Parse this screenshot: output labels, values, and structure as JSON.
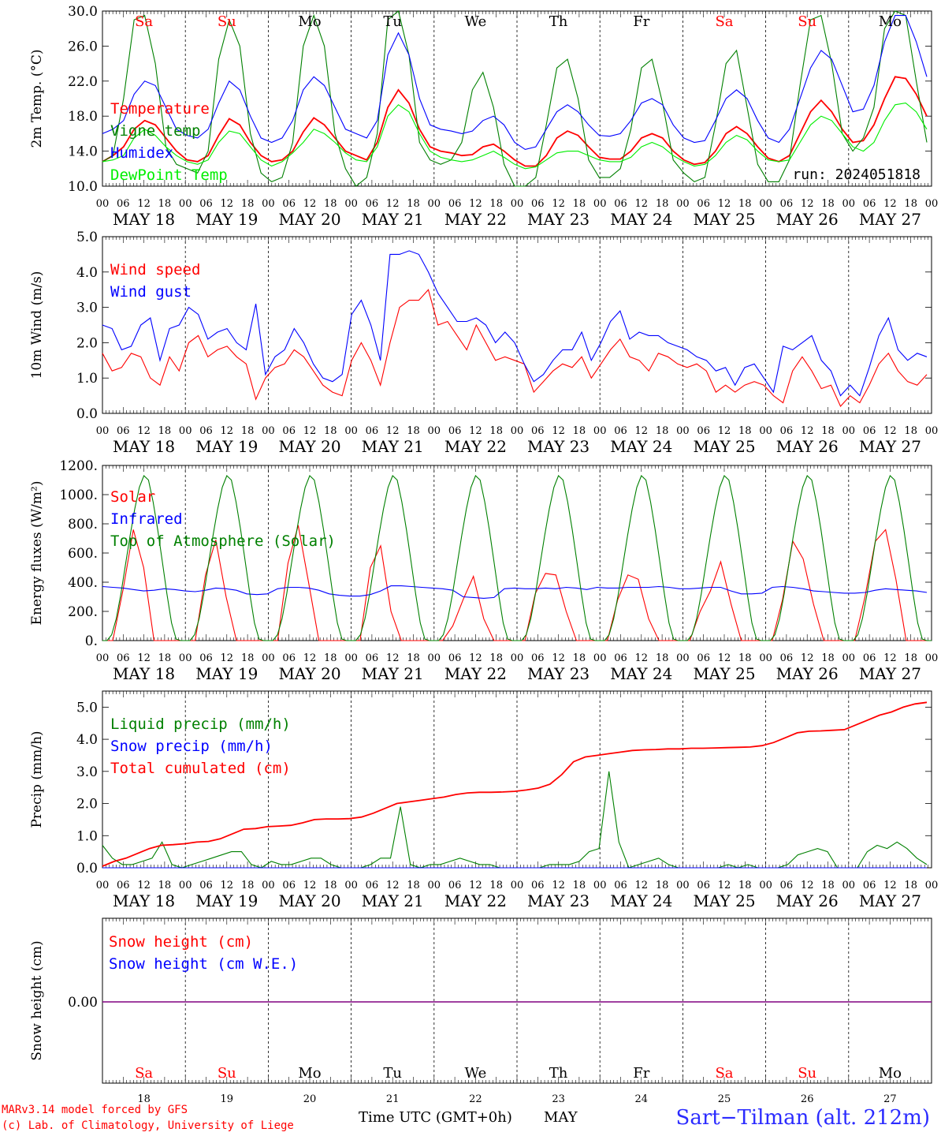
{
  "run_label": "run: 2024051818",
  "footer": {
    "credit_line1": "MARv3.14 model forced by GFS",
    "credit_line2": "(c) Lab. of Climatology, University of Liege",
    "xaxis_title": "Time UTC (GMT+0h)",
    "month_label": "MAY",
    "station": "Sart−Tilman (alt. 212m)"
  },
  "hour_labels": [
    "00",
    "06",
    "12",
    "18"
  ],
  "final_hour_label": "00",
  "day_labels": [
    "MAY 18",
    "MAY 19",
    "MAY 20",
    "MAY 21",
    "MAY 22",
    "MAY 23",
    "MAY 24",
    "MAY 25",
    "MAY 26",
    "MAY 27"
  ],
  "day_numbers": [
    "18",
    "19",
    "20",
    "21",
    "22",
    "23",
    "24",
    "25",
    "26",
    "27"
  ],
  "weekdays": [
    {
      "name": "Sa",
      "weekend": true
    },
    {
      "name": "Su",
      "weekend": true
    },
    {
      "name": "Mo",
      "weekend": false
    },
    {
      "name": "Tu",
      "weekend": false
    },
    {
      "name": "We",
      "weekend": false
    },
    {
      "name": "Th",
      "weekend": false
    },
    {
      "name": "Fr",
      "weekend": false
    },
    {
      "name": "Sa",
      "weekend": true
    },
    {
      "name": "Su",
      "weekend": true
    },
    {
      "name": "Mo",
      "weekend": false
    }
  ],
  "colors": {
    "red": "#ff0000",
    "blue": "#0000ff",
    "dark_green": "#008000",
    "light_green": "#00ee00",
    "purple": "#800080",
    "station_blue": "#2b2bff"
  },
  "chart_data": [
    {
      "type": "line",
      "ylabel": "2m Temp. (°C)",
      "ylim": [
        10,
        30
      ],
      "yticks": [
        "10.0",
        "14.0",
        "18.0",
        "22.0",
        "26.0",
        "30.0"
      ],
      "x": "hours since MAY 18 00 UTC, 3-hourly, 0..240",
      "series": [
        {
          "name": "Temperature",
          "color": "#ff0000",
          "values": [
            12.8,
            13.5,
            14.5,
            16.5,
            17.5,
            17.0,
            15.5,
            14.0,
            13.0,
            12.8,
            13.5,
            15.8,
            17.7,
            17.0,
            15.0,
            13.5,
            12.8,
            13.0,
            14.0,
            16.2,
            17.8,
            17.0,
            15.5,
            14.0,
            13.5,
            13.0,
            15.0,
            19.0,
            21.0,
            19.5,
            16.5,
            14.5,
            14.0,
            13.8,
            13.5,
            13.6,
            14.5,
            14.8,
            14.0,
            13.0,
            12.3,
            12.3,
            13.5,
            15.5,
            16.3,
            15.8,
            14.5,
            13.3,
            13.1,
            13.1,
            14.0,
            15.5,
            16.0,
            15.5,
            14.0,
            13.0,
            12.5,
            12.7,
            14.0,
            16.0,
            16.8,
            16.0,
            14.5,
            13.2,
            12.8,
            13.5,
            16.0,
            18.5,
            19.8,
            18.5,
            16.5,
            15.0,
            15.2,
            17.0,
            20.0,
            22.5,
            22.3,
            20.5,
            18.0
          ]
        },
        {
          "name": "Vigne temp",
          "color": "#008000",
          "values": [
            12.8,
            13.5,
            20.0,
            29.0,
            29.5,
            24.0,
            14.5,
            12.5,
            12.0,
            11.5,
            14.0,
            24.5,
            29.0,
            26.0,
            16.0,
            11.5,
            10.5,
            11.0,
            15.0,
            26.0,
            29.5,
            26.0,
            16.0,
            12.0,
            10.0,
            11.0,
            16.0,
            29.0,
            30.0,
            25.0,
            15.0,
            13.0,
            12.5,
            13.0,
            15.0,
            21.0,
            23.0,
            19.0,
            12.5,
            10.0,
            10.0,
            11.0,
            17.0,
            23.5,
            24.5,
            20.0,
            13.0,
            11.0,
            11.0,
            12.0,
            16.5,
            23.5,
            24.5,
            19.5,
            13.0,
            11.5,
            10.5,
            11.0,
            17.0,
            24.0,
            25.5,
            19.0,
            12.5,
            10.5,
            10.5,
            13.0,
            21.5,
            29.0,
            29.5,
            24.0,
            16.0,
            14.0,
            15.5,
            19.0,
            28.0,
            30.0,
            29.5,
            22.0,
            15.0
          ]
        },
        {
          "name": "Humidex",
          "color": "#0000ff",
          "values": [
            16.0,
            16.5,
            17.5,
            20.5,
            22.0,
            21.5,
            19.0,
            16.5,
            15.8,
            15.5,
            16.5,
            19.5,
            22.0,
            21.0,
            18.0,
            15.5,
            15.0,
            15.5,
            17.5,
            21.0,
            22.5,
            21.5,
            19.0,
            16.5,
            16.0,
            15.5,
            17.5,
            25.0,
            27.5,
            25.0,
            20.0,
            17.0,
            16.5,
            16.3,
            16.0,
            16.3,
            17.5,
            18.0,
            17.0,
            15.0,
            14.2,
            14.5,
            16.5,
            18.5,
            19.3,
            18.5,
            17.0,
            15.8,
            15.7,
            16.0,
            17.5,
            19.5,
            20.0,
            19.3,
            17.0,
            15.5,
            15.0,
            15.2,
            17.5,
            20.0,
            21.0,
            20.0,
            17.5,
            15.5,
            15.0,
            16.5,
            20.0,
            23.5,
            25.5,
            24.5,
            21.5,
            18.5,
            18.8,
            21.5,
            26.5,
            29.5,
            29.5,
            26.5,
            22.5
          ]
        },
        {
          "name": "DewPoint Temp",
          "color": "#00ee00",
          "values": [
            12.8,
            13.0,
            13.5,
            15.5,
            16.5,
            15.8,
            14.5,
            13.5,
            12.8,
            12.5,
            13.0,
            15.0,
            16.3,
            16.0,
            14.5,
            13.0,
            12.3,
            12.8,
            13.8,
            15.0,
            16.5,
            16.0,
            15.0,
            13.8,
            13.0,
            12.8,
            14.5,
            18.0,
            19.3,
            18.5,
            16.0,
            14.0,
            13.3,
            13.0,
            12.8,
            13.0,
            13.5,
            14.0,
            13.3,
            12.5,
            12.0,
            12.2,
            13.0,
            13.8,
            14.0,
            14.0,
            13.5,
            13.0,
            12.8,
            12.8,
            13.3,
            14.5,
            15.0,
            14.5,
            13.5,
            12.8,
            12.3,
            12.5,
            13.5,
            15.0,
            15.8,
            15.3,
            14.0,
            13.0,
            12.8,
            13.0,
            15.0,
            17.0,
            18.0,
            17.5,
            16.0,
            14.5,
            14.0,
            15.0,
            17.5,
            19.3,
            19.5,
            18.5,
            16.5
          ]
        }
      ]
    },
    {
      "type": "line",
      "ylabel": "10m Wind (m/s)",
      "ylim": [
        0,
        5
      ],
      "yticks": [
        "0.0",
        "1.0",
        "2.0",
        "3.0",
        "4.0",
        "5.0"
      ],
      "series": [
        {
          "name": "Wind speed",
          "color": "#ff0000",
          "values": [
            1.7,
            1.2,
            1.3,
            1.7,
            1.6,
            1.0,
            0.8,
            1.6,
            1.2,
            2.0,
            2.2,
            1.6,
            1.8,
            1.9,
            1.6,
            1.4,
            0.4,
            1.0,
            1.3,
            1.4,
            1.8,
            1.6,
            1.2,
            0.8,
            0.6,
            0.5,
            1.5,
            2.0,
            1.5,
            0.8,
            2.0,
            3.0,
            3.2,
            3.2,
            3.5,
            2.5,
            2.6,
            2.2,
            1.8,
            2.5,
            2.0,
            1.5,
            1.6,
            1.5,
            1.4,
            0.6,
            0.9,
            1.2,
            1.4,
            1.3,
            1.6,
            1.0,
            1.4,
            1.8,
            2.1,
            1.6,
            1.5,
            1.2,
            1.7,
            1.6,
            1.4,
            1.3,
            1.4,
            1.2,
            0.6,
            0.8,
            0.6,
            0.8,
            0.9,
            0.8,
            0.5,
            0.3,
            1.2,
            1.6,
            1.2,
            0.7,
            0.8,
            0.2,
            0.5,
            0.3,
            0.8,
            1.4,
            1.7,
            1.2,
            0.9,
            0.8,
            1.1
          ]
        },
        {
          "name": "Wind gust",
          "color": "#0000ff",
          "values": [
            2.5,
            2.4,
            1.8,
            1.9,
            2.5,
            2.7,
            1.5,
            2.4,
            2.5,
            3.0,
            2.8,
            2.1,
            2.3,
            2.4,
            2.0,
            1.8,
            3.1,
            1.1,
            1.6,
            1.8,
            2.4,
            2.0,
            1.4,
            1.0,
            0.9,
            1.1,
            2.8,
            3.2,
            2.5,
            1.5,
            4.5,
            4.5,
            4.6,
            4.5,
            4.0,
            3.4,
            3.0,
            2.6,
            2.6,
            2.7,
            2.5,
            2.0,
            2.3,
            2.0,
            1.4,
            0.9,
            1.1,
            1.5,
            1.8,
            1.8,
            2.3,
            1.5,
            2.0,
            2.6,
            2.9,
            2.1,
            2.3,
            2.2,
            2.2,
            2.0,
            1.9,
            1.8,
            1.6,
            1.5,
            1.2,
            1.3,
            0.8,
            1.3,
            1.4,
            1.0,
            0.6,
            1.9,
            1.8,
            2.0,
            2.2,
            1.5,
            1.2,
            0.5,
            0.8,
            0.5,
            1.3,
            2.2,
            2.7,
            1.8,
            1.5,
            1.7,
            1.6
          ]
        }
      ]
    },
    {
      "type": "line",
      "ylabel": "Energy fluxes (W/m²)",
      "ylim": [
        0,
        1200
      ],
      "yticks": [
        "0.",
        "200.",
        "400.",
        "600.",
        "800.",
        "1000.",
        "1200."
      ],
      "series": [
        {
          "name": "Solar",
          "color": "#ff0000",
          "values": [
            0,
            0,
            350,
            760,
            500,
            0,
            0,
            0,
            0,
            0,
            450,
            690,
            300,
            0,
            0,
            0,
            0,
            0,
            530,
            790,
            400,
            0,
            0,
            0,
            0,
            0,
            500,
            650,
            200,
            0,
            0,
            0,
            0,
            0,
            100,
            280,
            440,
            150,
            0,
            0,
            0,
            0,
            320,
            460,
            450,
            200,
            0,
            0,
            0,
            0,
            280,
            450,
            420,
            150,
            0,
            0,
            0,
            0,
            200,
            340,
            540,
            250,
            0,
            0,
            0,
            0,
            280,
            680,
            560,
            250,
            0,
            0,
            0,
            0,
            300,
            680,
            760,
            420,
            0,
            0,
            0
          ]
        },
        {
          "name": "Infrared",
          "color": "#0000ff",
          "values": [
            370,
            365,
            360,
            350,
            340,
            345,
            355,
            350,
            340,
            335,
            345,
            360,
            355,
            345,
            320,
            315,
            320,
            355,
            365,
            365,
            360,
            345,
            320,
            310,
            305,
            305,
            315,
            340,
            375,
            375,
            370,
            365,
            360,
            355,
            345,
            300,
            295,
            290,
            295,
            355,
            360,
            355,
            355,
            360,
            355,
            365,
            360,
            350,
            365,
            360,
            360,
            365,
            365,
            365,
            370,
            365,
            355,
            355,
            360,
            365,
            365,
            340,
            320,
            320,
            325,
            365,
            370,
            365,
            355,
            340,
            335,
            330,
            325,
            325,
            330,
            345,
            355,
            350,
            345,
            340,
            330
          ]
        },
        {
          "name": "Top of Atmosphere (Solar)",
          "color": "#008000",
          "values": [
            0,
            0,
            40,
            150,
            320,
            520,
            720,
            900,
            1050,
            1130,
            1100,
            950,
            760,
            540,
            320,
            120,
            10,
            0,
            0
          ]
        }
      ]
    },
    {
      "type": "line",
      "ylabel": "Precip (mm/h)",
      "ylim": [
        0,
        5.5
      ],
      "yticks": [
        "0.0",
        "1.0",
        "2.0",
        "3.0",
        "4.0",
        "5.0"
      ],
      "series": [
        {
          "name": "Liquid precip (mm/h)",
          "color": "#008000",
          "values": [
            0.7,
            0.3,
            0.1,
            0.1,
            0.2,
            0.3,
            0.8,
            0.1,
            0,
            0.1,
            0.2,
            0.3,
            0.4,
            0.5,
            0.5,
            0.1,
            0,
            0.2,
            0.1,
            0.1,
            0.2,
            0.3,
            0.3,
            0.1,
            0,
            0,
            0,
            0.1,
            0.3,
            0.3,
            1.9,
            0.1,
            0,
            0.1,
            0.1,
            0.2,
            0.3,
            0.2,
            0.1,
            0.1,
            0,
            0,
            0,
            0,
            0,
            0.1,
            0.1,
            0.1,
            0.2,
            0.5,
            0.6,
            3.0,
            0.8,
            0,
            0.1,
            0.2,
            0.3,
            0.1,
            0,
            0,
            0,
            0,
            0,
            0.1,
            0,
            0.1,
            0,
            0,
            0,
            0.1,
            0.4,
            0.5,
            0.6,
            0.5,
            0,
            0,
            0,
            0.5,
            0.7,
            0.6,
            0.8,
            0.6,
            0.3,
            0.1
          ]
        },
        {
          "name": "Snow precip (mm/h)",
          "color": "#0000ff",
          "values": [
            0,
            0,
            0,
            0,
            0,
            0,
            0,
            0,
            0,
            0,
            0,
            0,
            0,
            0,
            0,
            0,
            0,
            0,
            0,
            0,
            0,
            0,
            0,
            0,
            0,
            0,
            0,
            0,
            0,
            0,
            0,
            0,
            0,
            0,
            0,
            0,
            0,
            0,
            0,
            0,
            0,
            0,
            0,
            0,
            0,
            0,
            0,
            0,
            0,
            0,
            0,
            0,
            0,
            0,
            0,
            0,
            0,
            0,
            0,
            0,
            0,
            0,
            0,
            0,
            0,
            0,
            0,
            0,
            0,
            0,
            0,
            0,
            0,
            0,
            0,
            0,
            0,
            0,
            0,
            0,
            0,
            0,
            0,
            0
          ]
        },
        {
          "name": "Total cumulated (cm)",
          "color": "#ff0000",
          "values": [
            0.05,
            0.2,
            0.3,
            0.45,
            0.6,
            0.7,
            0.72,
            0.75,
            0.8,
            0.82,
            0.9,
            1.05,
            1.2,
            1.22,
            1.28,
            1.3,
            1.32,
            1.4,
            1.5,
            1.52,
            1.52,
            1.53,
            1.58,
            1.7,
            1.85,
            2.0,
            2.05,
            2.1,
            2.15,
            2.2,
            2.28,
            2.33,
            2.35,
            2.35,
            2.36,
            2.38,
            2.42,
            2.48,
            2.6,
            2.9,
            3.3,
            3.45,
            3.5,
            3.55,
            3.6,
            3.65,
            3.67,
            3.68,
            3.7,
            3.7,
            3.72,
            3.72,
            3.73,
            3.74,
            3.75,
            3.76,
            3.8,
            3.9,
            4.05,
            4.2,
            4.25,
            4.26,
            4.28,
            4.3,
            4.45,
            4.6,
            4.75,
            4.85,
            5.0,
            5.1,
            5.15
          ]
        }
      ]
    },
    {
      "type": "line",
      "ylabel": "Snow height (cm)",
      "yticks": [
        "0.00"
      ],
      "series": [
        {
          "name": "Snow height (cm)",
          "color": "#ff0000",
          "values": [
            0,
            0
          ]
        },
        {
          "name": "Snow height (cm W.E.)",
          "color": "#0000ff",
          "values": [
            0,
            0
          ]
        }
      ]
    }
  ]
}
